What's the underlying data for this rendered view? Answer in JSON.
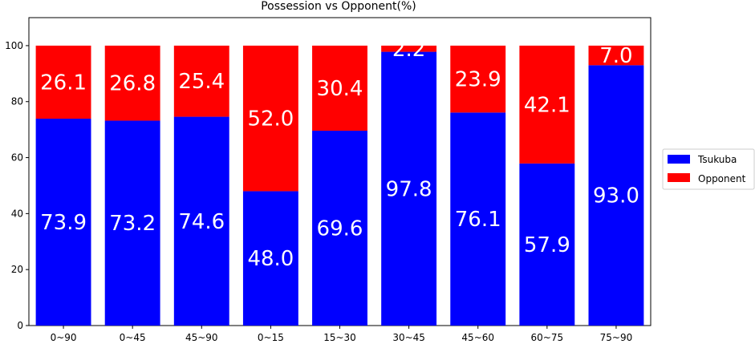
{
  "chart_data": {
    "type": "bar",
    "stacked": true,
    "title": "Possession vs Opponent(%)",
    "xlabel": "",
    "ylabel": "",
    "categories": [
      "0~90",
      "0~45",
      "45~90",
      "0~15",
      "15~30",
      "30~45",
      "45~60",
      "60~75",
      "75~90"
    ],
    "series": [
      {
        "name": "Tsukuba",
        "color": "#0000ff",
        "values": [
          73.9,
          73.2,
          74.6,
          48.0,
          69.6,
          97.8,
          76.1,
          57.9,
          93.0
        ],
        "labels": [
          "73.9",
          "73.2",
          "74.6",
          "48.0",
          "69.6",
          "97.8",
          "76.1",
          "57.9",
          "93.0"
        ]
      },
      {
        "name": "Opponent",
        "color": "#ff0000",
        "values": [
          26.1,
          26.8,
          25.4,
          52.0,
          30.4,
          2.2,
          23.9,
          42.1,
          7.0
        ],
        "labels": [
          "26.1",
          "26.8",
          "25.4",
          "52.0",
          "30.4",
          "2.2",
          "23.9",
          "42.1",
          "7.0"
        ]
      }
    ],
    "ylim": [
      0,
      110
    ],
    "yticks": [
      "0",
      "20",
      "40",
      "60",
      "80",
      "100"
    ],
    "grid": false,
    "legend_position": "center-right"
  }
}
